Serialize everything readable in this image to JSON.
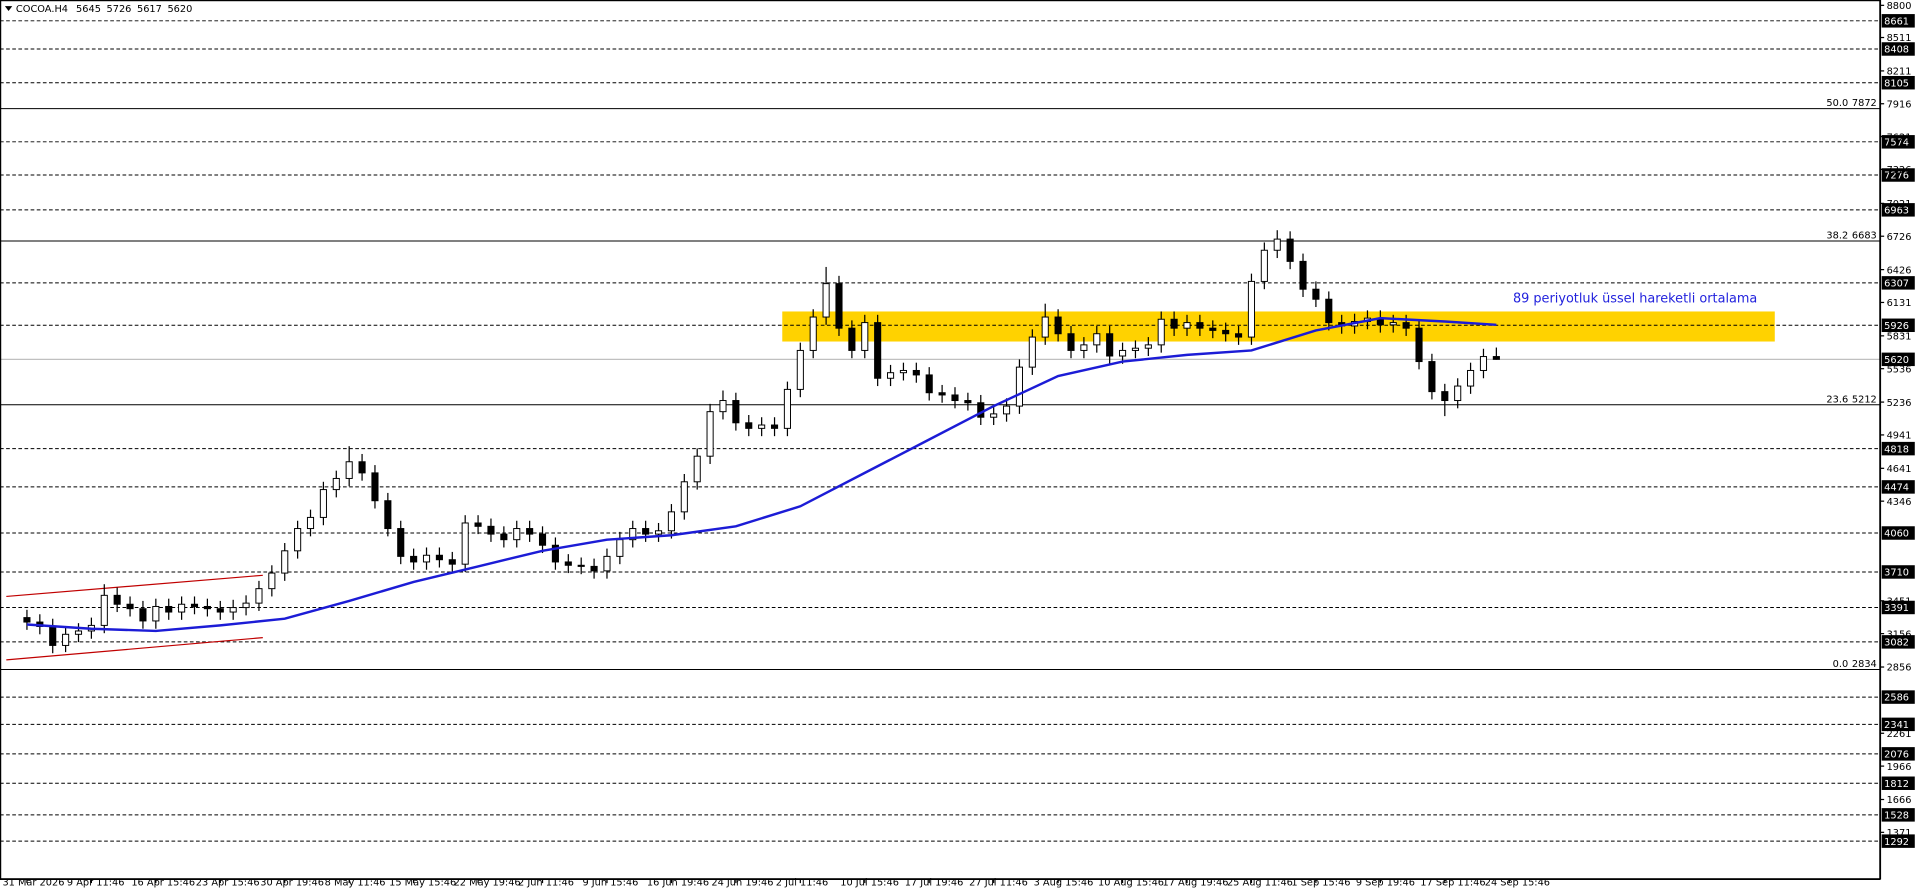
{
  "chart_data": {
    "type": "candlestick",
    "symbol": "COCOA.H4",
    "annotation": "89 periyotluk üssel hareketli ortalama",
    "xlim": [
      -2.09,
      143.8
    ],
    "ylim": [
      948,
      8848
    ],
    "xticks": [
      {
        "value": 0,
        "label": "31 Mar 2026"
      },
      {
        "value": 5,
        "label": "9 Apr 11:46"
      },
      {
        "value": 10,
        "label": "16 Apr 15:46"
      },
      {
        "value": 15,
        "label": "23 Apr 15:46"
      },
      {
        "value": 20,
        "label": "30 Apr 19:46"
      },
      {
        "value": 25,
        "label": "8 May 11:46"
      },
      {
        "value": 30,
        "label": "15 May 15:46"
      },
      {
        "value": 35,
        "label": "22 May 19:46"
      },
      {
        "value": 40,
        "label": "2 Jun 11:46"
      },
      {
        "value": 45,
        "label": "9 Jun 15:46"
      },
      {
        "value": 50,
        "label": "16 Jun 19:46"
      },
      {
        "value": 55,
        "label": "24 Jun 19:46"
      },
      {
        "value": 60,
        "label": "2 Jul 11:46"
      },
      {
        "value": 65,
        "label": "10 Jul 15:46"
      },
      {
        "value": 70,
        "label": "17 Jul 19:46"
      },
      {
        "value": 75,
        "label": "27 Jul 11:46"
      },
      {
        "value": 80,
        "label": "3 Aug 15:46"
      },
      {
        "value": 85,
        "label": "10 Aug 15:46"
      },
      {
        "value": 90,
        "label": "17 Aug 19:46"
      },
      {
        "value": 95,
        "label": "25 Aug 11:46"
      },
      {
        "value": 100,
        "label": "1 Sep 15:46"
      },
      {
        "value": 105,
        "label": "9 Sep 19:46"
      },
      {
        "value": 110,
        "label": "17 Sep 11:46"
      },
      {
        "value": 115,
        "label": "24 Sep 15:46"
      }
    ],
    "yticks": [
      8800,
      8511,
      8211,
      7916,
      7621,
      7326,
      7021,
      6726,
      6426,
      6131,
      5831,
      5536,
      5236,
      4941,
      4641,
      4346,
      3451,
      3156,
      2856,
      2261,
      1966,
      1666,
      1371
    ],
    "levels": [
      8661,
      8408,
      8105,
      7574,
      7276,
      6963,
      6307,
      5926,
      4818,
      4474,
      4060,
      3710,
      3391,
      3082,
      2586,
      2341,
      2076,
      1812,
      1528,
      1292
    ],
    "fib": [
      {
        "ratio": "50.0",
        "value": 7872
      },
      {
        "ratio": "38.2",
        "value": 6683
      },
      {
        "ratio": "23.6",
        "value": 5212
      },
      {
        "ratio": "0.0",
        "value": 2834
      }
    ],
    "zone": {
      "x": [
        58.6,
        135.6
      ],
      "values": [
        5780,
        6050
      ],
      "color": "#ffd200"
    },
    "channel": {
      "x": [
        -1.6,
        18.3
      ],
      "lines": [
        [
          3490,
          3680
        ],
        [
          2920,
          3120
        ]
      ],
      "color": "#c00000"
    },
    "ema": {
      "color": "#1c1cd6",
      "x": [
        0,
        5,
        10,
        15,
        20,
        25,
        30,
        35,
        40,
        45,
        50,
        55,
        60,
        65,
        70,
        75,
        80,
        85,
        90,
        95,
        100,
        105,
        110,
        114
      ],
      "values": [
        3238,
        3200,
        3180,
        3230,
        3290,
        3450,
        3620,
        3760,
        3900,
        4000,
        4040,
        4120,
        4300,
        4600,
        4900,
        5200,
        5470,
        5600,
        5660,
        5700,
        5880,
        5990,
        5960,
        5930
      ]
    },
    "open": [
      3300,
      3260,
      3220,
      3050,
      3150,
      3180,
      3230,
      3500,
      3420,
      3380,
      3270,
      3400,
      3350,
      3420,
      3400,
      3380,
      3350,
      3390,
      3430,
      3560,
      3700,
      3900,
      4100,
      4200,
      4450,
      4550,
      4700,
      4600,
      4350,
      4100,
      3850,
      3800,
      3860,
      3820,
      3780,
      4150,
      4120,
      4050,
      4000,
      4100,
      4050,
      3950,
      3800,
      3770,
      3760,
      3720,
      3850,
      4000,
      4100,
      4050,
      4080,
      4250,
      4520,
      4750,
      5150,
      5250,
      5050,
      5000,
      5030,
      5000,
      5350,
      5700,
      6000,
      6300,
      5900,
      5700,
      5950,
      5450,
      5500,
      5520,
      5480,
      5320,
      5300,
      5250,
      5230,
      5100,
      5130,
      5200,
      5550,
      5820,
      6000,
      5850,
      5700,
      5750,
      5850,
      5650,
      5700,
      5720,
      5750,
      5980,
      5900,
      5950,
      5900,
      5880,
      5850,
      5820,
      6320,
      6600,
      6700,
      6500,
      6250,
      6160,
      5950,
      5920,
      5960,
      5990,
      5930,
      5950,
      5900,
      5600,
      5330,
      5250,
      5380,
      5520,
      5645
    ],
    "high": [
      3370,
      3330,
      3290,
      3220,
      3250,
      3300,
      3600,
      3570,
      3490,
      3450,
      3470,
      3470,
      3490,
      3490,
      3470,
      3450,
      3460,
      3500,
      3630,
      3770,
      3970,
      4170,
      4270,
      4520,
      4620,
      4840,
      4770,
      4670,
      4420,
      4170,
      3920,
      3930,
      3930,
      3890,
      4220,
      4220,
      4190,
      4120,
      4170,
      4170,
      4120,
      4020,
      3870,
      3840,
      3830,
      3920,
      4070,
      4170,
      4170,
      4150,
      4320,
      4590,
      4820,
      5220,
      5340,
      5320,
      5120,
      5100,
      5100,
      5420,
      5770,
      6070,
      6450,
      6370,
      5970,
      6020,
      6020,
      5570,
      5590,
      5590,
      5550,
      5390,
      5370,
      5320,
      5300,
      5200,
      5270,
      5620,
      5890,
      6120,
      6070,
      5920,
      5820,
      5920,
      5920,
      5770,
      5790,
      5820,
      6050,
      6050,
      6020,
      6020,
      5970,
      5950,
      5920,
      6390,
      6670,
      6780,
      6770,
      6570,
      6320,
      6230,
      6020,
      6030,
      6060,
      6060,
      6020,
      6020,
      5970,
      5670,
      5400,
      5450,
      5590,
      5715,
      5726
    ],
    "low": [
      3190,
      3150,
      2980,
      2990,
      3080,
      3110,
      3160,
      3350,
      3310,
      3200,
      3200,
      3280,
      3280,
      3330,
      3310,
      3280,
      3280,
      3320,
      3360,
      3490,
      3630,
      3830,
      4030,
      4130,
      4380,
      4480,
      4530,
      4280,
      4030,
      3780,
      3730,
      3730,
      3750,
      3710,
      3710,
      4050,
      3980,
      3930,
      3930,
      3980,
      3880,
      3730,
      3700,
      3690,
      3650,
      3650,
      3780,
      3930,
      3980,
      3980,
      4010,
      4180,
      4450,
      4680,
      5080,
      4980,
      4930,
      4930,
      4930,
      4930,
      5280,
      5630,
      5930,
      5830,
      5630,
      5630,
      5380,
      5380,
      5430,
      5410,
      5250,
      5230,
      5180,
      5160,
      5030,
      5030,
      5060,
      5130,
      5480,
      5750,
      5780,
      5630,
      5630,
      5680,
      5580,
      5580,
      5630,
      5650,
      5680,
      5830,
      5830,
      5830,
      5810,
      5780,
      5750,
      5750,
      6250,
      6530,
      6430,
      6180,
      6090,
      5880,
      5850,
      5850,
      5890,
      5860,
      5860,
      5830,
      5530,
      5260,
      5110,
      5180,
      5310,
      5450,
      5617
    ],
    "close": [
      3260,
      3220,
      3050,
      3150,
      3180,
      3230,
      3500,
      3420,
      3380,
      3270,
      3400,
      3350,
      3420,
      3400,
      3380,
      3350,
      3390,
      3430,
      3560,
      3700,
      3900,
      4100,
      4200,
      4450,
      4550,
      4700,
      4600,
      4350,
      4100,
      3850,
      3800,
      3860,
      3820,
      3780,
      4150,
      4120,
      4050,
      4000,
      4100,
      4050,
      3950,
      3800,
      3770,
      3760,
      3720,
      3850,
      4000,
      4100,
      4050,
      4080,
      4250,
      4520,
      4750,
      5150,
      5250,
      5050,
      5000,
      5030,
      5000,
      5350,
      5700,
      6000,
      6300,
      5900,
      5700,
      5950,
      5450,
      5500,
      5520,
      5480,
      5320,
      5300,
      5250,
      5230,
      5100,
      5130,
      5200,
      5550,
      5820,
      6000,
      5850,
      5700,
      5750,
      5850,
      5650,
      5700,
      5720,
      5750,
      5980,
      5900,
      5950,
      5900,
      5880,
      5850,
      5820,
      6320,
      6600,
      6700,
      6500,
      6250,
      6160,
      5950,
      5920,
      5960,
      5990,
      5930,
      5950,
      5900,
      5600,
      5330,
      5250,
      5380,
      5520,
      5645,
      5620
    ]
  }
}
